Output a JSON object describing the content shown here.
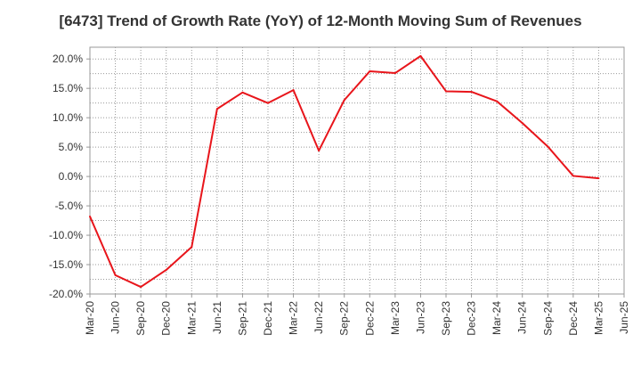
{
  "chart_data": {
    "type": "line",
    "title": "[6473]  Trend of Growth Rate (YoY) of 12-Month Moving Sum of Revenues",
    "xlabel": "",
    "ylabel": "",
    "x_ticks": [
      "Mar-20",
      "Jun-20",
      "Sep-20",
      "Dec-20",
      "Mar-21",
      "Jun-21",
      "Sep-21",
      "Dec-21",
      "Mar-22",
      "Jun-22",
      "Sep-22",
      "Dec-22",
      "Mar-23",
      "Jun-23",
      "Sep-23",
      "Dec-23",
      "Mar-24",
      "Jun-24",
      "Sep-24",
      "Dec-24",
      "Mar-25",
      "Jun-25"
    ],
    "y_ticks": [
      "20.0%",
      "15.0%",
      "10.0%",
      "5.0%",
      "0.0%",
      "-5.0%",
      "-10.0%",
      "-15.0%",
      "-20.0%"
    ],
    "y_tick_values": [
      20,
      15,
      10,
      5,
      0,
      -5,
      -10,
      -15,
      -20
    ],
    "ylim": [
      -20,
      22
    ],
    "grid": true,
    "series": [
      {
        "color": "#e8151b",
        "x": [
          "Mar-20",
          "Jun-20",
          "Sep-20",
          "Dec-20",
          "Mar-21",
          "Jun-21",
          "Sep-21",
          "Dec-21",
          "Mar-22",
          "Jun-22",
          "Sep-22",
          "Dec-22",
          "Mar-23",
          "Jun-23",
          "Sep-23",
          "Dec-23",
          "Mar-24",
          "Jun-24",
          "Sep-24",
          "Dec-24",
          "Mar-25"
        ],
        "values": [
          -6.8,
          -16.8,
          -18.8,
          -15.9,
          -12.0,
          11.5,
          14.3,
          12.5,
          14.7,
          4.4,
          13.0,
          17.9,
          17.6,
          20.5,
          14.5,
          14.4,
          12.8,
          9.1,
          5.1,
          0.1,
          -0.3
        ]
      }
    ]
  }
}
